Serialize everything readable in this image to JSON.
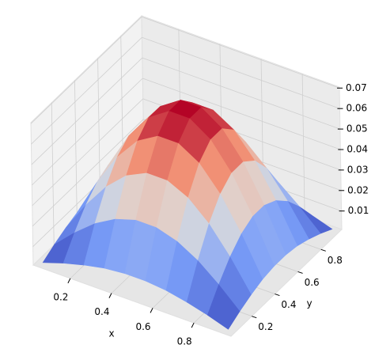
{
  "chart_data": {
    "type": "surface",
    "x": [
      0.05,
      0.15,
      0.25,
      0.35,
      0.45,
      0.55,
      0.65,
      0.75,
      0.85,
      0.95
    ],
    "y": [
      0.05,
      0.15,
      0.25,
      0.35,
      0.45,
      0.55,
      0.65,
      0.75,
      0.85,
      0.95
    ],
    "z": [
      [
        0.0017,
        0.005,
        0.0077,
        0.0098,
        0.0108,
        0.0108,
        0.0098,
        0.0077,
        0.005,
        0.0017
      ],
      [
        0.005,
        0.0144,
        0.0225,
        0.0283,
        0.0314,
        0.0314,
        0.0283,
        0.0225,
        0.0144,
        0.005
      ],
      [
        0.0077,
        0.0225,
        0.035,
        0.0441,
        0.0489,
        0.0489,
        0.0441,
        0.035,
        0.0225,
        0.0077
      ],
      [
        0.0098,
        0.0283,
        0.0441,
        0.0556,
        0.0616,
        0.0616,
        0.0556,
        0.0441,
        0.0283,
        0.0098
      ],
      [
        0.0108,
        0.0314,
        0.0489,
        0.0616,
        0.0683,
        0.0683,
        0.0616,
        0.0489,
        0.0314,
        0.0108
      ],
      [
        0.0108,
        0.0314,
        0.0489,
        0.0616,
        0.0683,
        0.0683,
        0.0616,
        0.0489,
        0.0314,
        0.0108
      ],
      [
        0.0098,
        0.0283,
        0.0441,
        0.0556,
        0.0616,
        0.0616,
        0.0556,
        0.0441,
        0.0283,
        0.0098
      ],
      [
        0.0077,
        0.0225,
        0.035,
        0.0441,
        0.0489,
        0.0489,
        0.0441,
        0.035,
        0.0225,
        0.0077
      ],
      [
        0.005,
        0.0144,
        0.0225,
        0.0283,
        0.0314,
        0.0314,
        0.0283,
        0.0225,
        0.0144,
        0.005
      ],
      [
        0.0017,
        0.005,
        0.0077,
        0.0098,
        0.0108,
        0.0108,
        0.0098,
        0.0077,
        0.005,
        0.0017
      ]
    ],
    "xlim": [
      0.02,
      0.98
    ],
    "ylim": [
      0.02,
      0.98
    ],
    "zlim": [
      0.001,
      0.0705
    ],
    "xticks": [
      0.2,
      0.4,
      0.6,
      0.8
    ],
    "yticks": [
      0.2,
      0.4,
      0.6,
      0.8
    ],
    "zticks": [
      0.01,
      0.02,
      0.03,
      0.04,
      0.05,
      0.06,
      0.07
    ],
    "xlabel": "x",
    "ylabel": "y",
    "colormap": "coolwarm",
    "grid": true
  }
}
